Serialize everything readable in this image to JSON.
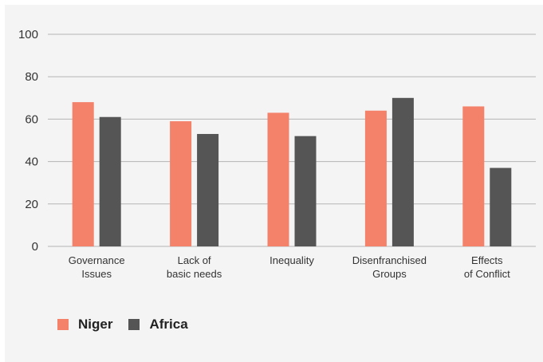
{
  "chart_data": {
    "type": "bar",
    "categories": [
      [
        "Governance",
        "Issues"
      ],
      [
        "Lack of",
        "basic needs"
      ],
      [
        "Inequality"
      ],
      [
        "Disenfranchised",
        "Groups"
      ],
      [
        "Effects",
        "of Conflict"
      ]
    ],
    "series": [
      {
        "name": "Niger",
        "color": "#f4816a",
        "values": [
          68,
          59,
          63,
          64,
          66
        ]
      },
      {
        "name": "Africa",
        "color": "#555555",
        "values": [
          61,
          53,
          52,
          70,
          37
        ]
      }
    ],
    "ylim": [
      0,
      100
    ],
    "yticks": [
      0,
      20,
      40,
      60,
      80,
      100
    ],
    "grid": true,
    "legend_position": "bottom-left",
    "gridline_color": "#b5b5b5",
    "background_color": "#f4f4f4"
  }
}
